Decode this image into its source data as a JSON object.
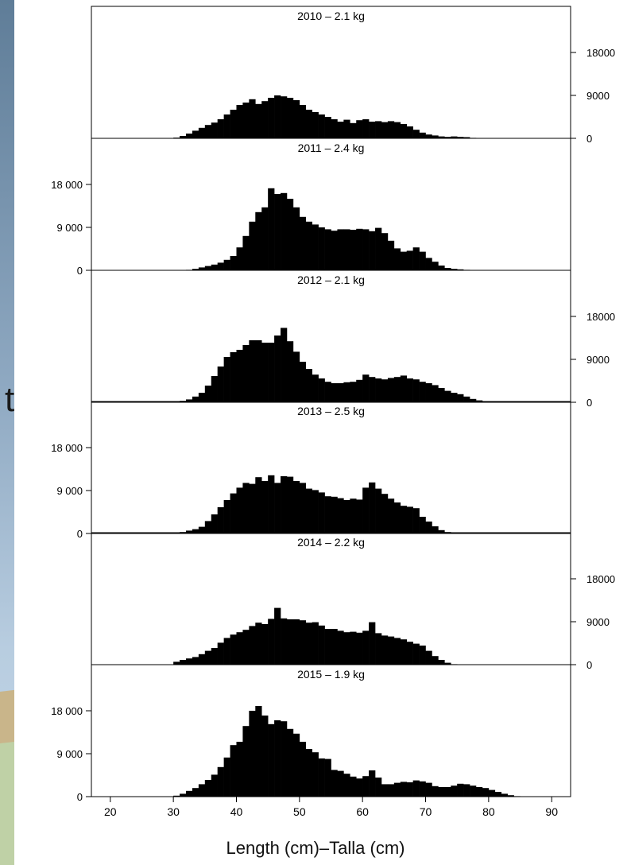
{
  "colors": {
    "background_top": "#5f7d98",
    "background_mid": "#b8cde0",
    "background_sand": "#c9b58a",
    "background_green": "#bfd1a6",
    "bar_fill": "#000000"
  },
  "side_glyph": "t",
  "chart_data": {
    "type": "bar",
    "xlabel": "Length (cm)–Talla (cm)",
    "xlim": [
      17,
      93
    ],
    "xticks": [
      20,
      30,
      40,
      50,
      60,
      70,
      80,
      90
    ],
    "bin_start": 20,
    "bin_width": 1,
    "ylim": [
      0,
      27000
    ],
    "panels": [
      {
        "title": "2010 – 2.1 kg",
        "axis_side": "right",
        "yticks": [
          {
            "v": 0,
            "label": "0"
          },
          {
            "v": 9000,
            "label": "9000"
          },
          {
            "v": 18000,
            "label": "18000"
          }
        ],
        "values": [
          0,
          0,
          0,
          0,
          0,
          0,
          0,
          0,
          0,
          0,
          150,
          500,
          1000,
          1600,
          2200,
          2800,
          3300,
          4000,
          5000,
          6000,
          7000,
          7500,
          8200,
          7200,
          7800,
          8500,
          9000,
          8800,
          8500,
          8000,
          7000,
          6000,
          5500,
          5000,
          4500,
          4000,
          3500,
          3900,
          3200,
          3800,
          4000,
          3500,
          3600,
          3400,
          3600,
          3400,
          3000,
          2500,
          1800,
          1200,
          800,
          600,
          400,
          300,
          400,
          300,
          250,
          100,
          0,
          0,
          0,
          0,
          0,
          0,
          0,
          0,
          0,
          0,
          0,
          0,
          0
        ]
      },
      {
        "title": "2011 – 2.4 kg",
        "axis_side": "left",
        "yticks": [
          {
            "v": 0,
            "label": "0"
          },
          {
            "v": 9000,
            "label": "9 000"
          },
          {
            "v": 18000,
            "label": "18 000"
          }
        ],
        "values": [
          0,
          0,
          0,
          0,
          0,
          0,
          0,
          0,
          0,
          0,
          0,
          0,
          100,
          300,
          600,
          900,
          1200,
          1600,
          2200,
          3000,
          4800,
          7200,
          10200,
          12200,
          13200,
          17200,
          16000,
          16200,
          15000,
          13200,
          11200,
          10200,
          9600,
          9000,
          8600,
          8300,
          8600,
          8600,
          8500,
          8700,
          8600,
          8200,
          8900,
          7800,
          6200,
          4600,
          3900,
          4100,
          4800,
          3900,
          2600,
          1800,
          1000,
          500,
          300,
          200,
          100,
          0,
          0,
          0,
          0,
          0,
          0,
          0,
          0,
          0,
          0,
          0,
          0,
          0,
          0
        ]
      },
      {
        "title": "2012 – 2.1 kg",
        "axis_side": "right",
        "yticks": [
          {
            "v": 0,
            "label": "0"
          },
          {
            "v": 9000,
            "label": "9000"
          },
          {
            "v": 18000,
            "label": "18000"
          }
        ],
        "values": [
          0,
          0,
          0,
          0,
          0,
          0,
          0,
          0,
          0,
          0,
          100,
          300,
          600,
          1200,
          2000,
          3500,
          5500,
          7500,
          9500,
          10500,
          11000,
          12000,
          13000,
          13000,
          12500,
          12500,
          14000,
          15600,
          12800,
          10600,
          8500,
          7000,
          5800,
          5000,
          4300,
          4000,
          4000,
          4200,
          4300,
          4700,
          5800,
          5300,
          5000,
          4800,
          5100,
          5300,
          5600,
          5000,
          4800,
          4300,
          4000,
          3600,
          3000,
          2400,
          2000,
          1700,
          1200,
          700,
          400,
          200,
          100,
          0,
          0,
          0,
          0,
          0,
          0,
          0,
          0,
          0,
          0
        ]
      },
      {
        "title": "2013 – 2.5 kg",
        "axis_side": "left",
        "yticks": [
          {
            "v": 0,
            "label": "0"
          },
          {
            "v": 9000,
            "label": "9 000"
          },
          {
            "v": 18000,
            "label": "18 000"
          }
        ],
        "values": [
          0,
          0,
          0,
          0,
          0,
          0,
          0,
          0,
          0,
          0,
          100,
          300,
          600,
          900,
          1400,
          2600,
          4000,
          5500,
          7000,
          8400,
          9600,
          10600,
          10400,
          11800,
          11000,
          12200,
          10600,
          12000,
          11900,
          11000,
          10600,
          9400,
          9100,
          8600,
          7800,
          7700,
          7400,
          7000,
          7300,
          7100,
          9600,
          10700,
          9400,
          8300,
          7300,
          6500,
          5800,
          5600,
          5300,
          3500,
          2500,
          1500,
          700,
          300,
          100,
          0,
          0,
          0,
          0,
          0,
          0,
          0,
          0,
          0,
          0,
          0,
          0,
          0,
          0,
          0,
          0
        ]
      },
      {
        "title": "2014 – 2.2 kg",
        "axis_side": "right",
        "yticks": [
          {
            "v": 0,
            "label": "0"
          },
          {
            "v": 9000,
            "label": "9000"
          },
          {
            "v": 18000,
            "label": "18000"
          }
        ],
        "values": [
          0,
          0,
          0,
          0,
          0,
          0,
          0,
          0,
          0,
          0,
          600,
          1000,
          1300,
          1600,
          2200,
          2900,
          3500,
          4600,
          5600,
          6300,
          6800,
          7300,
          8100,
          8800,
          8500,
          9600,
          11900,
          9700,
          9500,
          9500,
          9300,
          8800,
          8900,
          8200,
          7500,
          7500,
          7100,
          6800,
          6900,
          6700,
          7100,
          8900,
          6600,
          6100,
          5900,
          5600,
          5300,
          4800,
          4400,
          4000,
          2900,
          1800,
          1000,
          400,
          100,
          0,
          0,
          0,
          0,
          0,
          0,
          0,
          0,
          0,
          0,
          0,
          0,
          0,
          0,
          0,
          0
        ]
      },
      {
        "title": "2015 – 1.9 kg",
        "axis_side": "left",
        "yticks": [
          {
            "v": 0,
            "label": "0"
          },
          {
            "v": 9000,
            "label": "9 000"
          },
          {
            "v": 18000,
            "label": "18 000"
          }
        ],
        "values": [
          0,
          0,
          0,
          0,
          0,
          0,
          0,
          0,
          0,
          50,
          200,
          600,
          1200,
          1800,
          2600,
          3500,
          4600,
          6200,
          8200,
          10800,
          11500,
          14800,
          18000,
          19000,
          17000,
          15200,
          16000,
          15800,
          14200,
          13200,
          11500,
          10000,
          9300,
          8000,
          7900,
          5600,
          5400,
          4800,
          4200,
          3800,
          4300,
          5500,
          4000,
          2600,
          2600,
          2900,
          3100,
          3000,
          3400,
          3200,
          2900,
          2200,
          2000,
          2000,
          2300,
          2700,
          2600,
          2300,
          2000,
          1800,
          1400,
          1000,
          600,
          300,
          100,
          0,
          0,
          0,
          0,
          0,
          0
        ]
      }
    ]
  }
}
